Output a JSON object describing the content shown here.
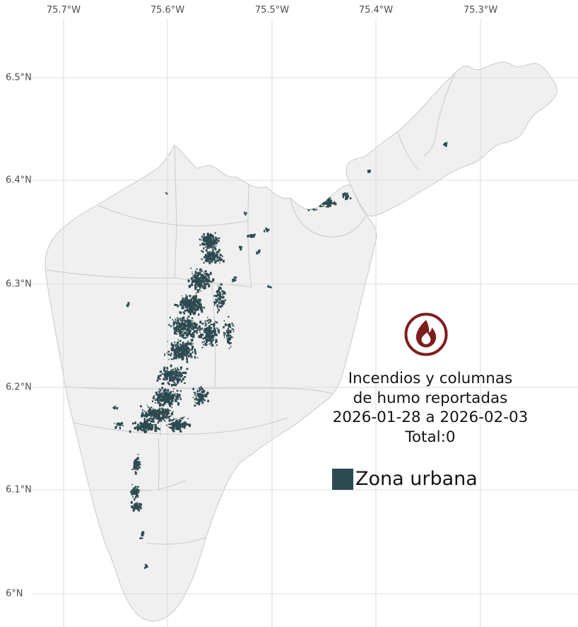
{
  "axes": {
    "lon": [
      "75.7°W",
      "75.6°W",
      "75.5°W",
      "75.4°W",
      "75.3°W"
    ],
    "lat": [
      "6.5°N",
      "6.4°N",
      "6.3°N",
      "6.2°N",
      "6.1°N",
      "6°N"
    ]
  },
  "annotation": {
    "line1": "Incendios y columnas",
    "line2": "de humo reportadas",
    "line3": "2026-01-28 a 2026-02-03",
    "line4": "Total:0"
  },
  "legend": {
    "urban_label": "Zona urbana"
  },
  "icons": {
    "fire": "fire-icon"
  },
  "colors": {
    "background": "#ffffff",
    "region_fill": "#f0f0f0",
    "region_border": "#c9c9c9",
    "grid_line": "#dcdcdc",
    "tick_text": "#4c4c4c",
    "urban": "#2d4a50",
    "fire_red": "#7f1d1d",
    "text": "#141414"
  }
}
